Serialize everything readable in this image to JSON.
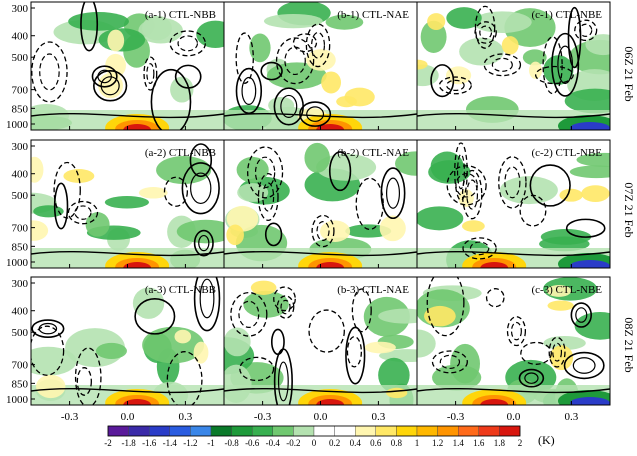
{
  "chart_data": {
    "type": "heatmap",
    "y_ticks": [
      "300",
      "400",
      "500",
      "700",
      "850",
      "1000"
    ],
    "y_values": [
      300,
      400,
      500,
      700,
      850,
      1000
    ],
    "x_ticks": [
      "-0.3",
      "0.0",
      "0.3"
    ],
    "x_values": [
      -0.3,
      0.0,
      0.3
    ],
    "x_range": [
      -0.5,
      0.5
    ],
    "row_labels": [
      "06Z 21 Feb",
      "07Z 21 Feb",
      "08Z 21 Feb"
    ],
    "panels": [
      [
        {
          "title": "(a-1) CTL-NBB"
        },
        {
          "title": "(b-1) CTL-NAE"
        },
        {
          "title": "(c-1) CTL-NBE"
        }
      ],
      [
        {
          "title": "(a-2) CTL-NBB"
        },
        {
          "title": "(b-2) CTL-NAE"
        },
        {
          "title": "(c-2) CTL-NBE"
        }
      ],
      [
        {
          "title": "(a-3) CTL-NBB"
        },
        {
          "title": "(b-3) CTL-NAE"
        },
        {
          "title": "(c-3) CTL-NBE"
        }
      ]
    ],
    "colorbar": {
      "levels": [
        "-2",
        "-1.8",
        "-1.6",
        "-1.4",
        "-1.2",
        "-1",
        "-0.8",
        "-0.6",
        "-0.4",
        "-0.2",
        "0",
        "0.2",
        "0.4",
        "0.6",
        "0.8",
        "1",
        "1.2",
        "1.4",
        "1.6",
        "1.8",
        "2"
      ],
      "colors": [
        "#5a1a9a",
        "#3a2aa8",
        "#2a3cc8",
        "#2a5ce0",
        "#3a86e8",
        "#0a7a2a",
        "#1e9a3a",
        "#38b050",
        "#70c870",
        "#b4e2b0",
        "#ffffff",
        "#ffffff",
        "#fff6b0",
        "#ffe866",
        "#ffd60a",
        "#ffb800",
        "#ff9400",
        "#ff6a1a",
        "#ee3a1a",
        "#d8160e"
      ],
      "unit": "(K)"
    }
  }
}
